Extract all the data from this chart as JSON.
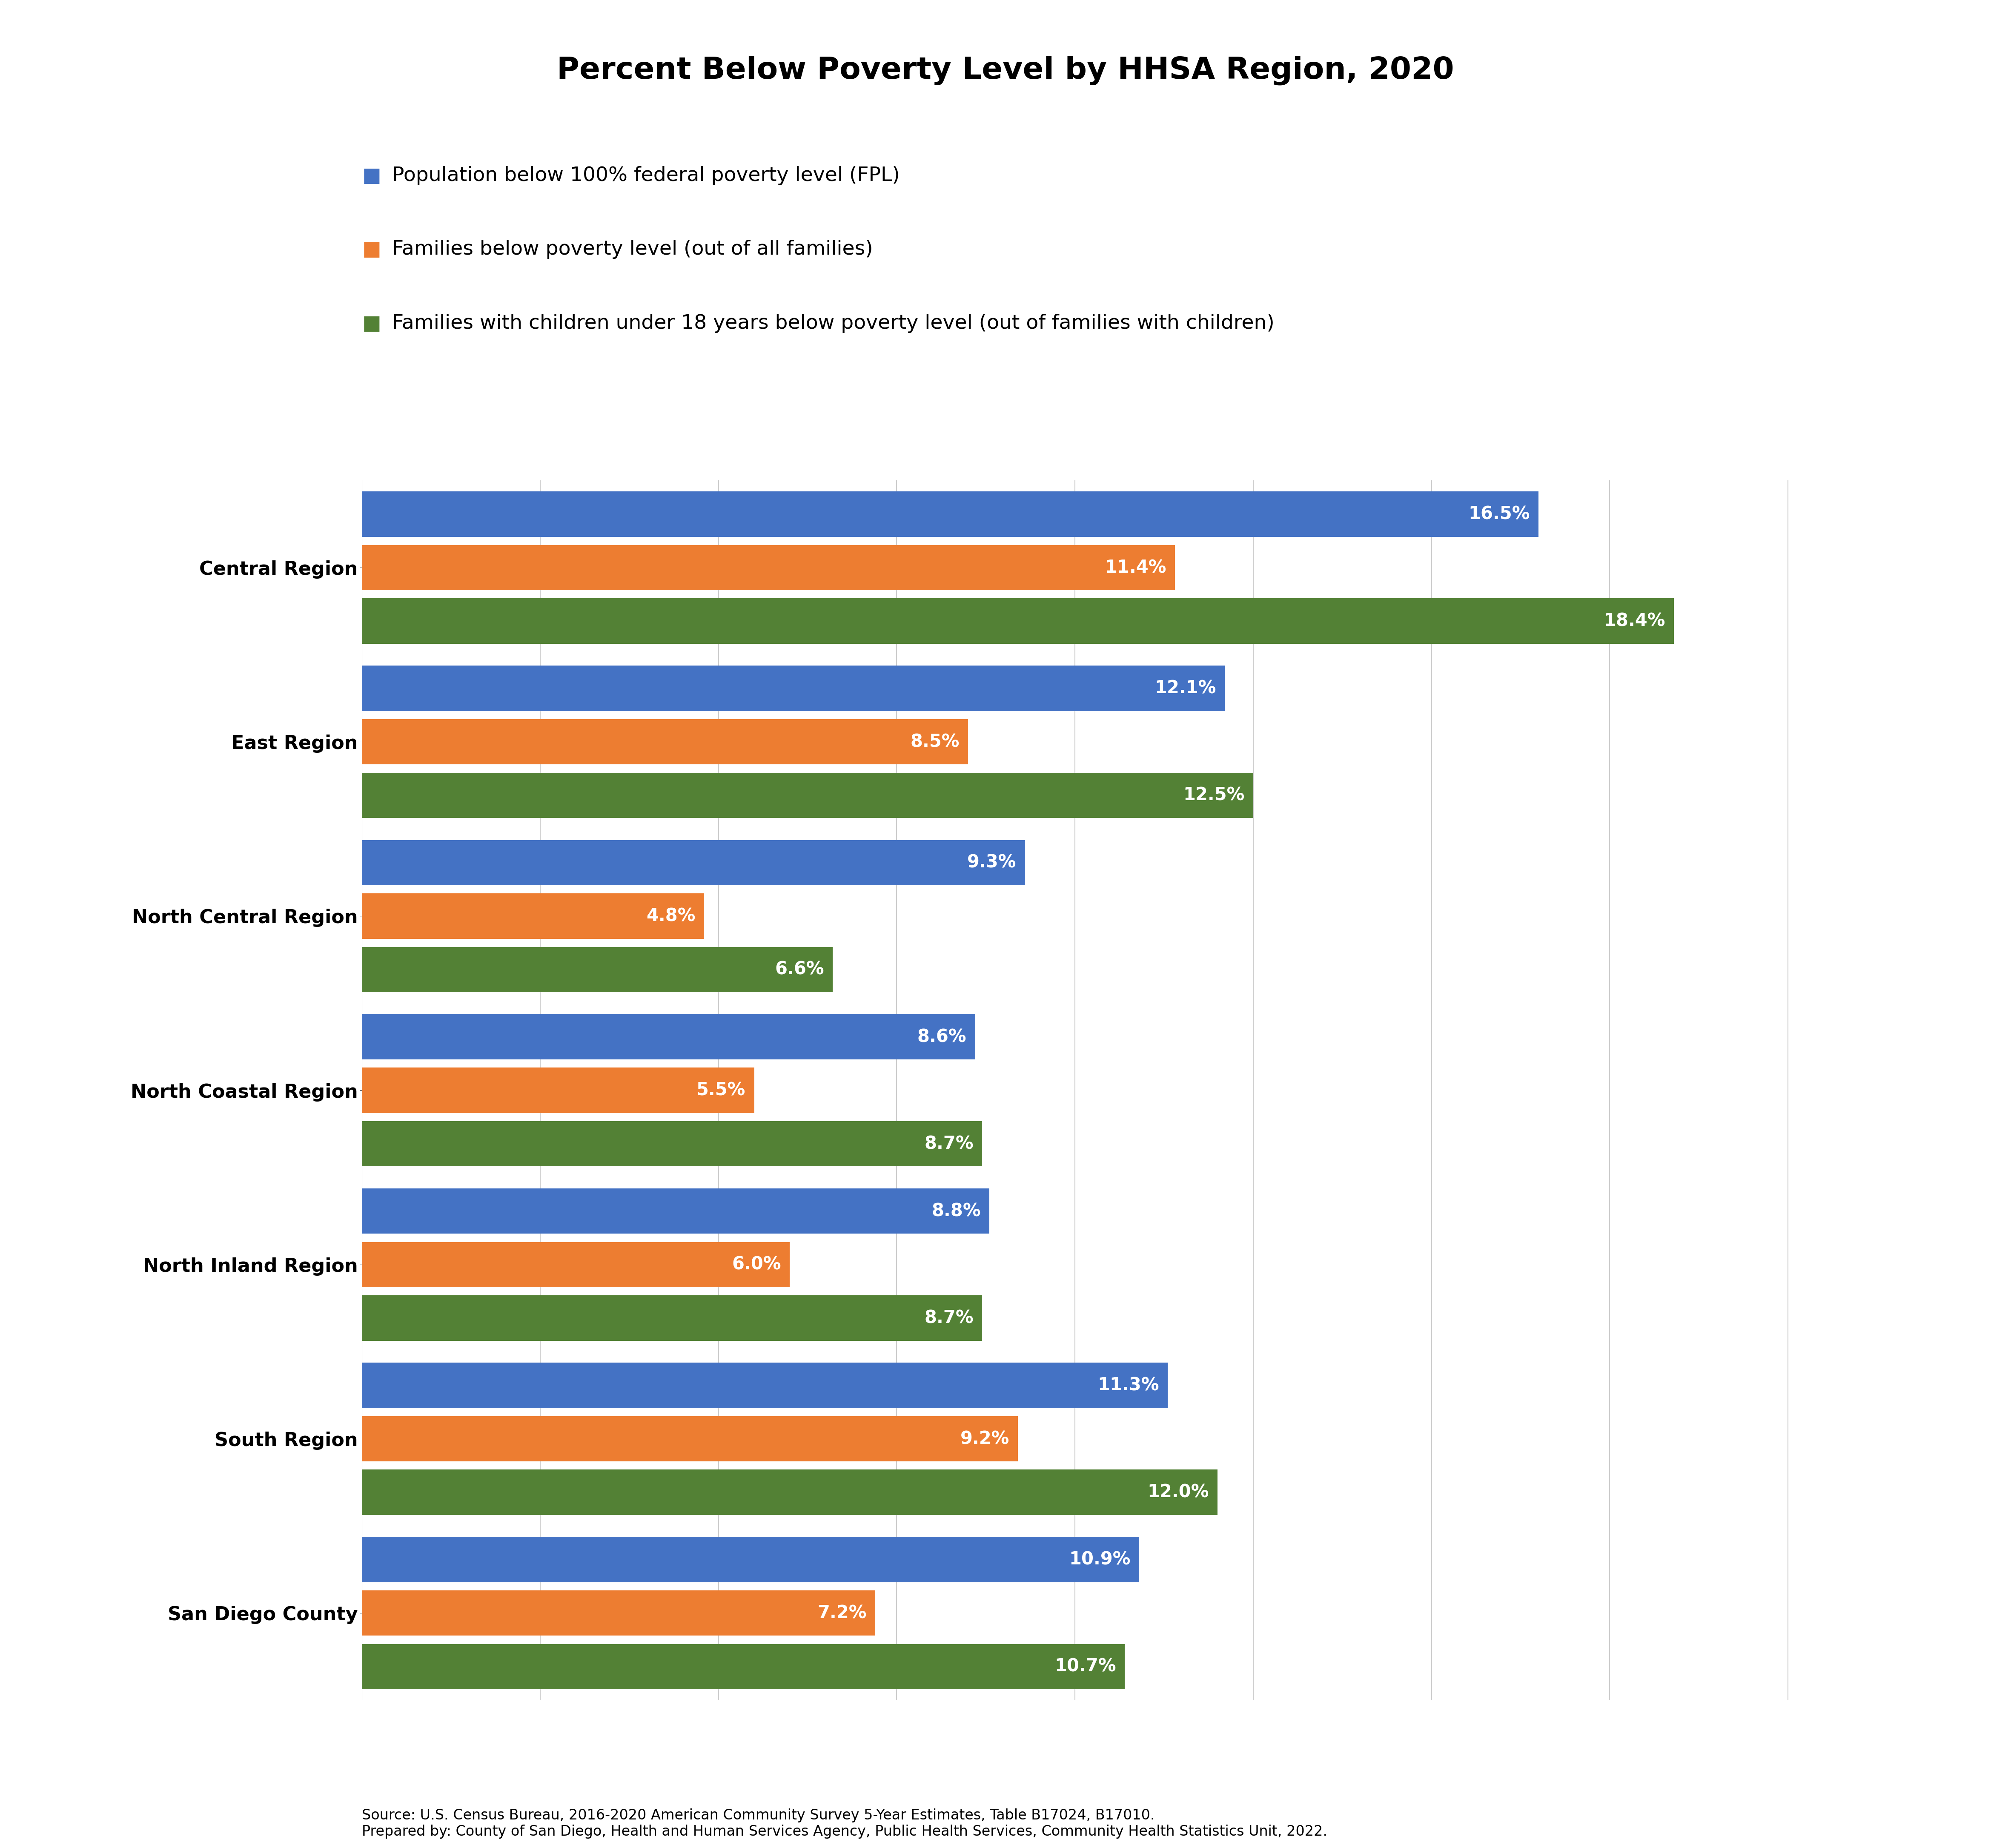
{
  "title": "Percent Below Poverty Level by HHSA Region, 2020",
  "categories": [
    "Central Region",
    "East Region",
    "North Central Region",
    "North Coastal Region",
    "North Inland Region",
    "South Region",
    "San Diego County"
  ],
  "series": {
    "population": [
      16.5,
      12.1,
      9.3,
      8.6,
      8.8,
      11.3,
      10.9
    ],
    "families": [
      11.4,
      8.5,
      4.8,
      5.5,
      6.0,
      9.2,
      7.2
    ],
    "families_children": [
      18.4,
      12.5,
      6.6,
      8.7,
      8.7,
      12.0,
      10.7
    ]
  },
  "colors": {
    "population": "#4472C4",
    "families": "#ED7D31",
    "families_children": "#538135"
  },
  "legend_labels": [
    "Population below 100% federal poverty level (FPL)",
    "Families below poverty level (out of all families)",
    "Families with children under 18 years below poverty level (out of families with children)"
  ],
  "xlim": [
    0,
    22
  ],
  "bar_height": 0.26,
  "tick_fontsize": 32,
  "title_fontsize": 52,
  "legend_fontsize": 34,
  "value_fontsize": 30,
  "source_text": "Source: U.S. Census Bureau, 2016-2020 American Community Survey 5-Year Estimates, Table B17024, B17010.\nPrepared by: County of San Diego, Health and Human Services Agency, Public Health Services, Community Health Statistics Unit, 2022.",
  "source_fontsize": 24,
  "background_color": "#FFFFFF"
}
